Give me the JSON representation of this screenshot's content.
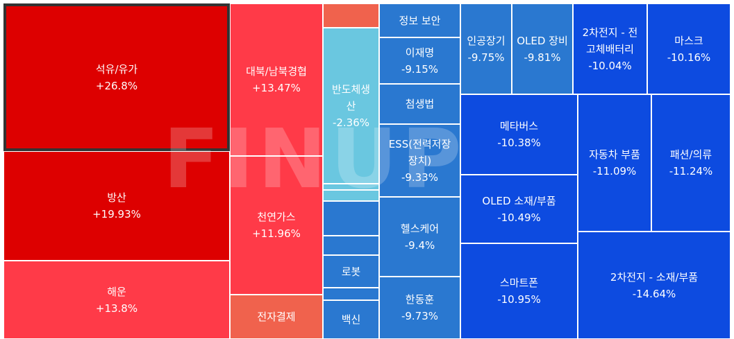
{
  "chart_data": {
    "type": "treemap",
    "watermark": "FINUP",
    "colors": {
      "strong_up": "#dd0000",
      "up": "#ff3a48",
      "mild_up": "#f0624d",
      "mild_down": "#6ac7e0",
      "down": "#2a78d0",
      "strong_down": "#0d4be0"
    },
    "tiles": [
      {
        "name": "석유/유가",
        "change": "+26.8%",
        "value": 26.8,
        "color": "strong_up",
        "selected": true
      },
      {
        "name": "방산",
        "change": "+19.93%",
        "value": 19.93,
        "color": "strong_up"
      },
      {
        "name": "해운",
        "change": "+13.8%",
        "value": 13.8,
        "color": "up"
      },
      {
        "name": "대북/남북경협",
        "change": "+13.47%",
        "value": 13.47,
        "color": "up"
      },
      {
        "name": "천연가스",
        "change": "+11.96%",
        "value": 11.96,
        "color": "up"
      },
      {
        "name": "전자결제",
        "change": "",
        "value": null,
        "color": "mild_up"
      },
      {
        "name": "",
        "change": "",
        "value": null,
        "color": "mild_up"
      },
      {
        "name": "반도체생산",
        "change": "-2.36%",
        "value": -2.36,
        "color": "mild_down"
      },
      {
        "name": "",
        "change": "",
        "value": null,
        "color": "mild_down"
      },
      {
        "name": "",
        "change": "",
        "value": null,
        "color": "mild_down"
      },
      {
        "name": "",
        "change": "",
        "value": null,
        "color": "down"
      },
      {
        "name": "",
        "change": "",
        "value": null,
        "color": "down"
      },
      {
        "name": "로봇",
        "change": "",
        "value": null,
        "color": "down"
      },
      {
        "name": "",
        "change": "",
        "value": null,
        "color": "down"
      },
      {
        "name": "백신",
        "change": "",
        "value": null,
        "color": "down"
      },
      {
        "name": "정보 보안",
        "change": "",
        "value": null,
        "color": "down"
      },
      {
        "name": "이재명",
        "change": "-9.15%",
        "value": -9.15,
        "color": "down"
      },
      {
        "name": "첨생법",
        "change": "",
        "value": null,
        "color": "down"
      },
      {
        "name": "ESS(전력저장장치)",
        "change": "-9.33%",
        "value": -9.33,
        "color": "down"
      },
      {
        "name": "헬스케어",
        "change": "-9.4%",
        "value": -9.4,
        "color": "down"
      },
      {
        "name": "한동훈",
        "change": "-9.73%",
        "value": -9.73,
        "color": "down"
      },
      {
        "name": "인공장기",
        "change": "-9.75%",
        "value": -9.75,
        "color": "down"
      },
      {
        "name": "OLED 장비",
        "change": "-9.81%",
        "value": -9.81,
        "color": "down"
      },
      {
        "name": "2차전지 - 전고체배터리",
        "change": "-10.04%",
        "value": -10.04,
        "color": "strong_down"
      },
      {
        "name": "마스크",
        "change": "-10.16%",
        "value": -10.16,
        "color": "strong_down"
      },
      {
        "name": "메타버스",
        "change": "-10.38%",
        "value": -10.38,
        "color": "strong_down"
      },
      {
        "name": "OLED 소재/부품",
        "change": "-10.49%",
        "value": -10.49,
        "color": "strong_down"
      },
      {
        "name": "스마트폰",
        "change": "-10.95%",
        "value": -10.95,
        "color": "strong_down"
      },
      {
        "name": "자동차 부품",
        "change": "-11.09%",
        "value": -11.09,
        "color": "strong_down"
      },
      {
        "name": "패션/의류",
        "change": "-11.24%",
        "value": -11.24,
        "color": "strong_down"
      },
      {
        "name": "2차전지 - 소재/부품",
        "change": "-14.64%",
        "value": -14.64,
        "color": "strong_down"
      }
    ]
  }
}
